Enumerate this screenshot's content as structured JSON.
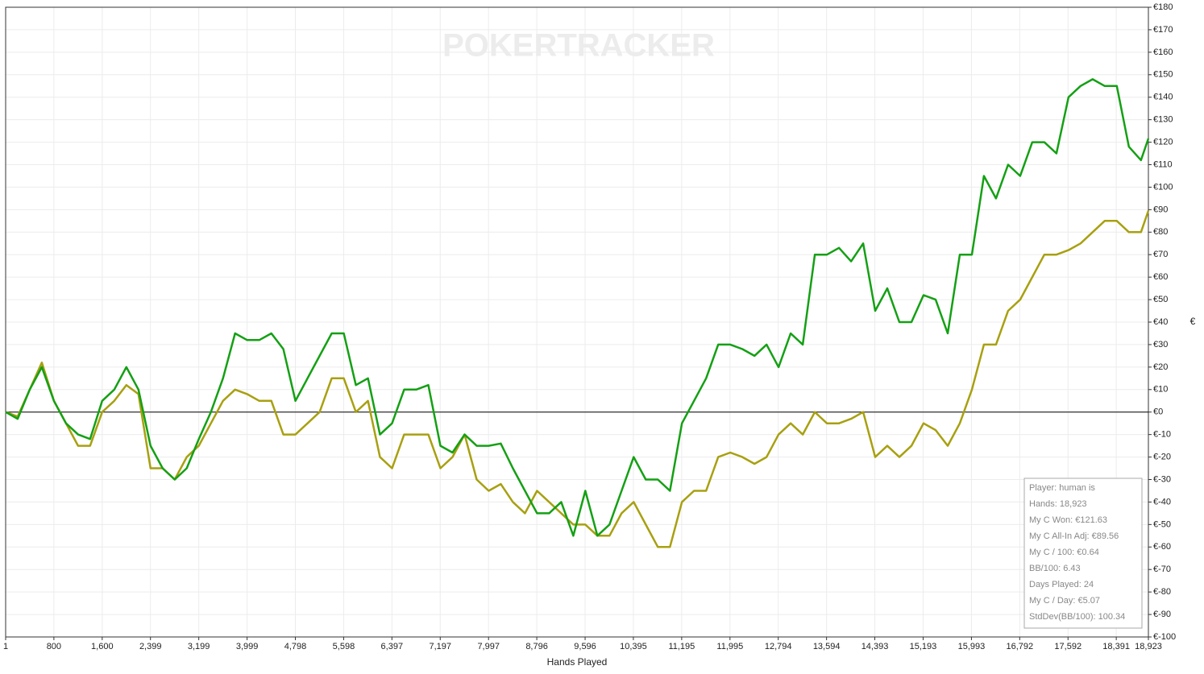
{
  "chart_data": {
    "type": "line",
    "watermark": "POKERTRACKER",
    "x_label": "Hands Played",
    "y_label": "€",
    "x": [
      1,
      200,
      400,
      600,
      800,
      1000,
      1200,
      1400,
      1600,
      1800,
      2000,
      2200,
      2400,
      2600,
      2800,
      3000,
      3200,
      3400,
      3600,
      3800,
      4000,
      4200,
      4400,
      4600,
      4800,
      5000,
      5200,
      5400,
      5600,
      5800,
      6000,
      6200,
      6400,
      6600,
      6800,
      7000,
      7200,
      7400,
      7600,
      7800,
      8000,
      8200,
      8400,
      8600,
      8800,
      9000,
      9200,
      9400,
      9600,
      9800,
      10000,
      10200,
      10400,
      10600,
      10800,
      11000,
      11200,
      11400,
      11600,
      11800,
      12000,
      12200,
      12400,
      12600,
      12800,
      13000,
      13200,
      13400,
      13600,
      13800,
      14000,
      14200,
      14400,
      14600,
      14800,
      15000,
      15200,
      15400,
      15600,
      15800,
      16000,
      16200,
      16400,
      16600,
      16800,
      17000,
      17200,
      17400,
      17600,
      17800,
      18000,
      18200,
      18400,
      18600,
      18800,
      18923
    ],
    "series": [
      {
        "color": "#14a014",
        "values": [
          0,
          -3,
          10,
          20,
          5,
          -5,
          -10,
          -12,
          5,
          10,
          20,
          10,
          -15,
          -25,
          -30,
          -25,
          -12,
          0,
          15,
          35,
          32,
          32,
          35,
          28,
          5,
          15,
          25,
          35,
          35,
          12,
          15,
          -10,
          -5,
          10,
          10,
          12,
          -15,
          -18,
          -10,
          -15,
          -15,
          -14,
          -25,
          -35,
          -45,
          -45,
          -40,
          -55,
          -35,
          -55,
          -50,
          -35,
          -20,
          -30,
          -30,
          -35,
          -5,
          5,
          15,
          30,
          30,
          28,
          25,
          30,
          20,
          35,
          30,
          70,
          70,
          73,
          67,
          75,
          45,
          55,
          40,
          40,
          52,
          50,
          35,
          70,
          70,
          105,
          95,
          110,
          105,
          120,
          120,
          115,
          140,
          145,
          148,
          145,
          145,
          118,
          112,
          121.63
        ]
      },
      {
        "color": "#a8a010",
        "values": [
          0,
          -2,
          10,
          22,
          5,
          -5,
          -15,
          -15,
          0,
          5,
          12,
          8,
          -25,
          -25,
          -30,
          -20,
          -15,
          -5,
          5,
          10,
          8,
          5,
          5,
          -10,
          -10,
          -5,
          0,
          15,
          15,
          0,
          5,
          -20,
          -25,
          -10,
          -10,
          -10,
          -25,
          -20,
          -10,
          -30,
          -35,
          -32,
          -40,
          -45,
          -35,
          -40,
          -45,
          -50,
          -50,
          -55,
          -55,
          -45,
          -40,
          -50,
          -60,
          -60,
          -40,
          -35,
          -35,
          -20,
          -18,
          -20,
          -23,
          -20,
          -10,
          -5,
          -10,
          0,
          -5,
          -5,
          -3,
          0,
          -20,
          -15,
          -20,
          -15,
          -5,
          -8,
          -15,
          -5,
          10,
          30,
          30,
          45,
          50,
          60,
          70,
          70,
          72,
          75,
          80,
          85,
          85,
          80,
          80,
          89.56
        ]
      }
    ],
    "xlim": [
      1,
      18923
    ],
    "xticks": [
      1,
      800,
      {
        "value": 1600,
        "label": "1,600"
      },
      {
        "value": 2399,
        "label": "2,399"
      },
      {
        "value": 3199,
        "label": "3,199"
      },
      {
        "value": 3999,
        "label": "3,999"
      },
      {
        "value": 4798,
        "label": "4,798"
      },
      {
        "value": 5598,
        "label": "5,598"
      },
      {
        "value": 6397,
        "label": "6,397"
      },
      {
        "value": 7197,
        "label": "7,197"
      },
      {
        "value": 7997,
        "label": "7,997"
      },
      {
        "value": 8796,
        "label": "8,796"
      },
      {
        "value": 9596,
        "label": "9,596"
      },
      {
        "value": 10395,
        "label": "10,395"
      },
      {
        "value": 11195,
        "label": "11,195"
      },
      {
        "value": 11995,
        "label": "11,995"
      },
      {
        "value": 12794,
        "label": "12,794"
      },
      {
        "value": 13594,
        "label": "13,594"
      },
      {
        "value": 14393,
        "label": "14,393"
      },
      {
        "value": 15193,
        "label": "15,193"
      },
      {
        "value": 15993,
        "label": "15,993"
      },
      {
        "value": 16792,
        "label": "16,792"
      },
      {
        "value": 17592,
        "label": "17,592"
      },
      {
        "value": 18391,
        "label": "18,391"
      },
      {
        "value": 18923,
        "label": "18,923"
      }
    ],
    "ylim": [
      -100,
      180
    ],
    "yticks": [
      {
        "value": -100,
        "label": "€-100"
      },
      {
        "value": -90,
        "label": "€-90"
      },
      {
        "value": -80,
        "label": "€-80"
      },
      {
        "value": -70,
        "label": "€-70"
      },
      {
        "value": -60,
        "label": "€-60"
      },
      {
        "value": -50,
        "label": "€-50"
      },
      {
        "value": -40,
        "label": "€-40"
      },
      {
        "value": -30,
        "label": "€-30"
      },
      {
        "value": -20,
        "label": "€-20"
      },
      {
        "value": -10,
        "label": "€-10"
      },
      {
        "value": 0,
        "label": "€0"
      },
      {
        "value": 10,
        "label": "€10"
      },
      {
        "value": 20,
        "label": "€20"
      },
      {
        "value": 30,
        "label": "€30"
      },
      {
        "value": 40,
        "label": "€40"
      },
      {
        "value": 50,
        "label": "€50"
      },
      {
        "value": 60,
        "label": "€60"
      },
      {
        "value": 70,
        "label": "€70"
      },
      {
        "value": 80,
        "label": "€80"
      },
      {
        "value": 90,
        "label": "€90"
      },
      {
        "value": 100,
        "label": "€100"
      },
      {
        "value": 110,
        "label": "€110"
      },
      {
        "value": 120,
        "label": "€120"
      },
      {
        "value": 130,
        "label": "€130"
      },
      {
        "value": 140,
        "label": "€140"
      },
      {
        "value": 150,
        "label": "€150"
      },
      {
        "value": 160,
        "label": "€160"
      },
      {
        "value": 170,
        "label": "€170"
      },
      {
        "value": 180,
        "label": "€180"
      }
    ],
    "grid": true,
    "stats": [
      "Player: human is",
      "Hands: 18,923",
      "My C Won: €121.63",
      "My C All-In Adj: €89.56",
      "My C / 100: €0.64",
      "BB/100: 6.43",
      "Days Played: 24",
      "My C / Day: €5.07",
      "StdDev(BB/100): 100.34"
    ]
  }
}
